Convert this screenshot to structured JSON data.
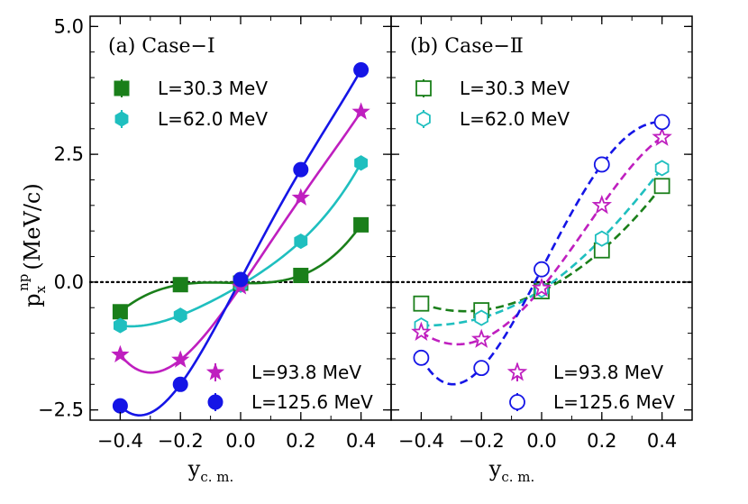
{
  "y_axis": {
    "symbol": "p",
    "subscript": "x",
    "superscript": "np",
    "unit": "(MeV/c)",
    "ticks": [
      "5.0",
      "2.5",
      "0.0",
      "−2.5"
    ],
    "tick_values": [
      5.0,
      2.5,
      0.0,
      -2.5
    ]
  },
  "x_axis": {
    "symbol": "y",
    "subscript": "c. m.",
    "ticks": [
      "−0.4",
      "−0.2",
      "0.0",
      "0.2",
      "0.4"
    ],
    "tick_values": [
      -0.4,
      -0.2,
      0.0,
      0.2,
      0.4
    ]
  },
  "colors": {
    "L30": "#1a7f1a",
    "L62": "#1fbfbf",
    "L94": "#bf1fbf",
    "L126": "#1515e6"
  },
  "chart_data": [
    {
      "type": "scatter",
      "panel": "left",
      "title": "(a) Case−Ⅰ",
      "xlim": [
        -0.5,
        0.5
      ],
      "ylim": [
        -2.7,
        5.2
      ],
      "x": [
        -0.4,
        -0.2,
        0.0,
        0.2,
        0.4
      ],
      "reference_line": 0.0,
      "fit_style": "solid",
      "marker_fill": "filled",
      "series": [
        {
          "name": "L=30.3 MeV",
          "color_key": "L30",
          "marker": "square",
          "values": [
            -0.58,
            -0.05,
            -0.02,
            0.13,
            1.12
          ]
        },
        {
          "name": "L=62.0 MeV",
          "color_key": "L62",
          "marker": "hexagon",
          "values": [
            -0.85,
            -0.65,
            -0.06,
            0.8,
            2.33
          ]
        },
        {
          "name": "L=93.8 MeV",
          "color_key": "L94",
          "marker": "star",
          "values": [
            -1.42,
            -1.52,
            -0.09,
            1.65,
            3.33
          ]
        },
        {
          "name": "L=125.6 MeV",
          "color_key": "L126",
          "marker": "circle",
          "values": [
            -2.42,
            -2.0,
            0.05,
            2.2,
            4.15
          ]
        }
      ]
    },
    {
      "type": "scatter",
      "panel": "right",
      "title": "(b) Case−Ⅱ",
      "xlim": [
        -0.5,
        0.5
      ],
      "ylim": [
        -2.7,
        5.2
      ],
      "x": [
        -0.4,
        -0.2,
        0.0,
        0.2,
        0.4
      ],
      "reference_line": 0.0,
      "fit_style": "dashed",
      "marker_fill": "open",
      "series": [
        {
          "name": "L=30.3 MeV",
          "color_key": "L30",
          "marker": "square",
          "values": [
            -0.42,
            -0.55,
            -0.18,
            0.62,
            1.88
          ]
        },
        {
          "name": "L=62.0 MeV",
          "color_key": "L62",
          "marker": "hexagon",
          "values": [
            -0.85,
            -0.7,
            -0.15,
            0.85,
            2.23
          ]
        },
        {
          "name": "L=93.8 MeV",
          "color_key": "L94",
          "marker": "star",
          "values": [
            -0.98,
            -1.12,
            -0.12,
            1.5,
            2.83
          ]
        },
        {
          "name": "L=125.6 MeV",
          "color_key": "L126",
          "marker": "circle",
          "values": [
            -1.48,
            -1.68,
            0.25,
            2.3,
            3.13
          ]
        }
      ]
    }
  ]
}
